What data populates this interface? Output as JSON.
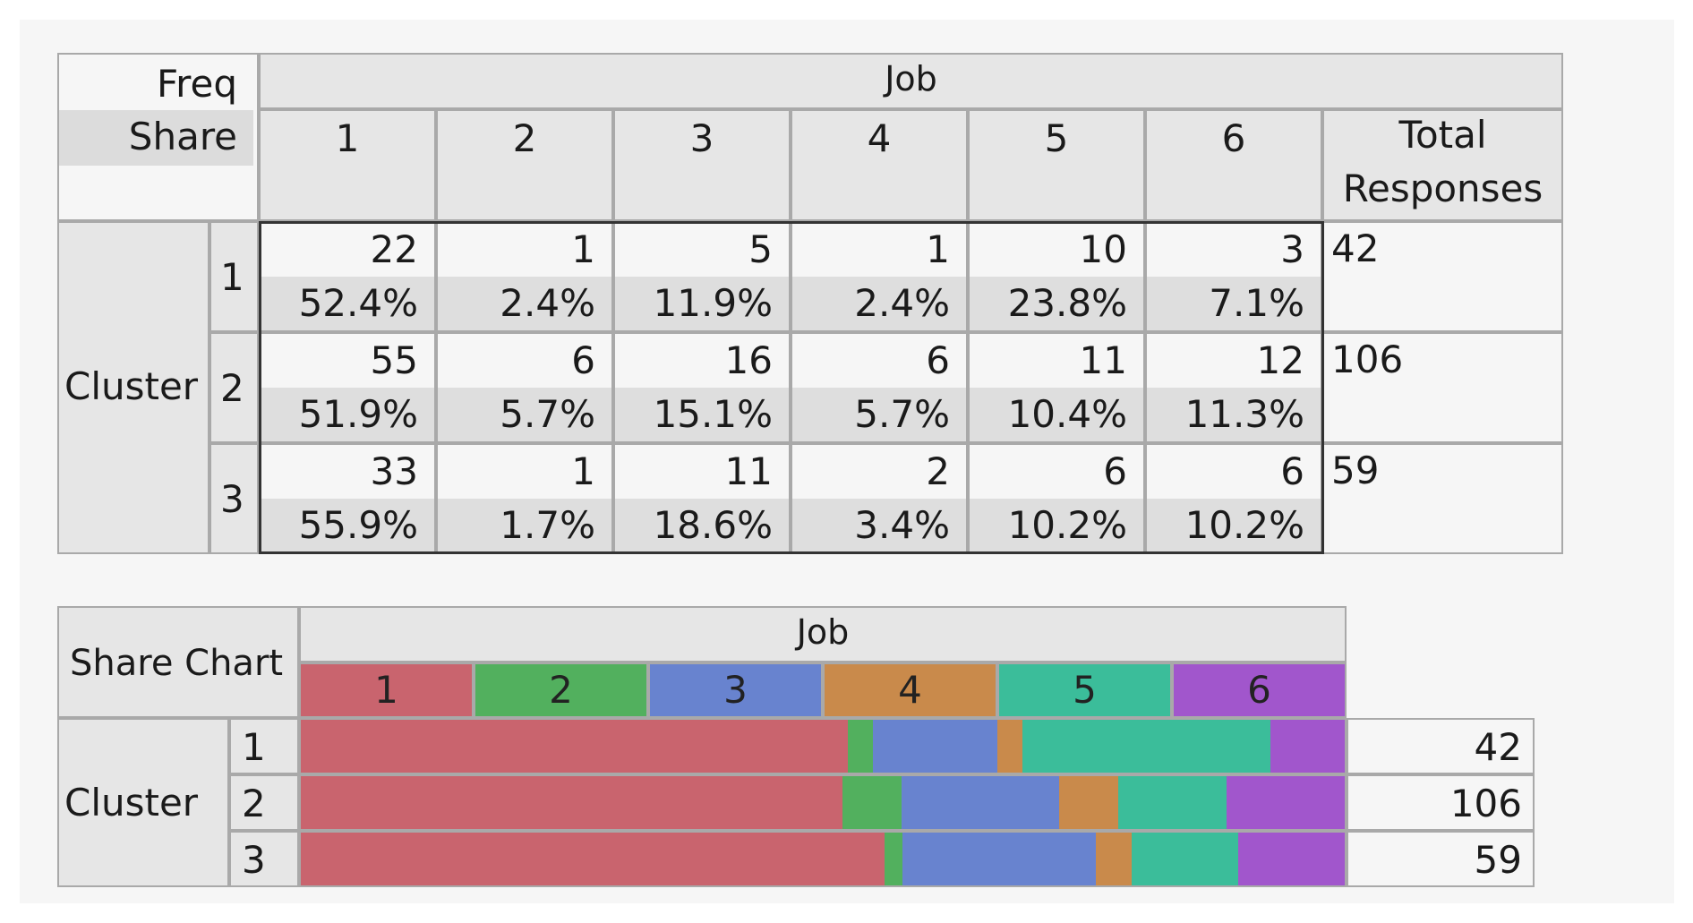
{
  "crosstab": {
    "corner_freq": "Freq",
    "corner_share": "Share",
    "column_group": "Job",
    "columns": [
      "1",
      "2",
      "3",
      "4",
      "5",
      "6"
    ],
    "total_header_line1": "Total",
    "total_header_line2": "Responses",
    "row_group": "Cluster",
    "rows": [
      {
        "label": "1",
        "freq": [
          "22",
          "1",
          "5",
          "1",
          "10",
          "3"
        ],
        "share": [
          "52.4%",
          "2.4%",
          "11.9%",
          "2.4%",
          "23.8%",
          "7.1%"
        ],
        "total": "42"
      },
      {
        "label": "2",
        "freq": [
          "55",
          "6",
          "16",
          "6",
          "11",
          "12"
        ],
        "share": [
          "51.9%",
          "5.7%",
          "15.1%",
          "5.7%",
          "10.4%",
          "11.3%"
        ],
        "total": "106"
      },
      {
        "label": "3",
        "freq": [
          "33",
          "1",
          "11",
          "2",
          "6",
          "6"
        ],
        "share": [
          "55.9%",
          "1.7%",
          "18.6%",
          "3.4%",
          "10.2%",
          "10.2%"
        ],
        "total": "59"
      }
    ]
  },
  "share_chart": {
    "corner_label": "Share Chart",
    "column_group": "Job",
    "row_group": "Cluster",
    "legend": [
      "1",
      "2",
      "3",
      "4",
      "5",
      "6"
    ],
    "colors": [
      "#c9646e",
      "#52b05e",
      "#6883cf",
      "#c98a4b",
      "#3bbd9a",
      "#a156cc"
    ],
    "row_labels": [
      "1",
      "2",
      "3"
    ],
    "totals": [
      "42",
      "106",
      "59"
    ]
  },
  "chart_data": {
    "type": "bar",
    "stacked": "100%",
    "categories": [
      "1",
      "2",
      "3"
    ],
    "series": [
      {
        "name": "1",
        "values": [
          52.4,
          51.9,
          55.9
        ]
      },
      {
        "name": "2",
        "values": [
          2.4,
          5.7,
          1.7
        ]
      },
      {
        "name": "3",
        "values": [
          11.9,
          15.1,
          18.6
        ]
      },
      {
        "name": "4",
        "values": [
          2.4,
          5.7,
          3.4
        ]
      },
      {
        "name": "5",
        "values": [
          23.8,
          10.4,
          10.2
        ]
      },
      {
        "name": "6",
        "values": [
          7.1,
          11.3,
          10.2
        ]
      }
    ],
    "xlabel": "Job",
    "ylabel": "Cluster",
    "xlim": [
      0,
      100
    ]
  }
}
